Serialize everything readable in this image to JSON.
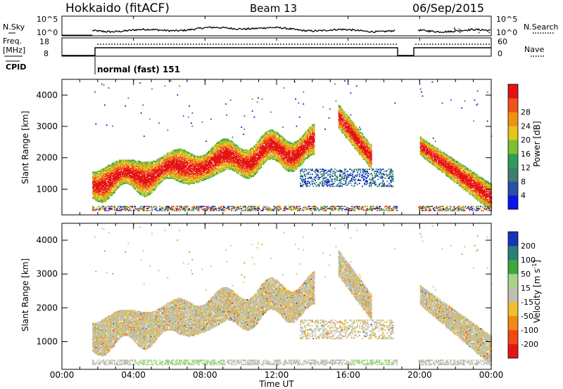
{
  "header": {
    "radar": "Hokkaido (fitACF)",
    "beam": "Beam 13",
    "date": "06/Sep/2015"
  },
  "noise_panel": {
    "left_label": "N.Sky",
    "left_ticks": [
      "10^5",
      "10^0"
    ],
    "right_ticks": [
      "10^5",
      "10^0"
    ],
    "right_label": "N.Search"
  },
  "freq_panel": {
    "left_label_1": "Freq.",
    "left_label_2": "[MHz]",
    "left_ticks": [
      "18",
      "8"
    ],
    "right_ticks": [
      "60",
      "0"
    ],
    "right_label": "Nave"
  },
  "cpid": {
    "label": "CPID",
    "program": "normal (fast) 151"
  },
  "colors": {
    "power_scale": [
      "#0b13e8",
      "#2a4fa8",
      "#3e7f6e",
      "#2f9c5a",
      "#7fc02f",
      "#e3c51c",
      "#f09119",
      "#ee5318",
      "#e41414"
    ],
    "velocity_scale": [
      "#e41414",
      "#ee4a14",
      "#f28717",
      "#eec12a",
      "#bebeb4",
      "#a8d48a",
      "#3fa83c",
      "#2d7d79",
      "#1834b6"
    ]
  },
  "chart_data": [
    {
      "type": "heatmap",
      "title": "",
      "ylabel": "Slant Range [km]",
      "xlabel": "",
      "ylim": [
        180,
        4500
      ],
      "yticks": [
        "1000",
        "2000",
        "3000",
        "4000"
      ],
      "xlim": [
        "00:00",
        "24:00"
      ],
      "colorbar": {
        "label": "Power [dB]",
        "ticks": [
          "4",
          "8",
          "12",
          "16",
          "20",
          "24",
          "28"
        ],
        "range": [
          0,
          30
        ]
      },
      "echo_regions": [
        {
          "name": "near-range band",
          "t_start": 1.7,
          "t_end": 24,
          "range_km": [
            300,
            450
          ]
        },
        {
          "name": "main arc",
          "t_start": 1.7,
          "t_end": 14.1,
          "range_km": [
            900,
            2700
          ],
          "peak_power_db": 28
        },
        {
          "name": "evening arc",
          "t_start": 15.4,
          "t_end": 17.2,
          "range_km": [
            1800,
            3800
          ],
          "peak_power_db": 28
        },
        {
          "name": "post-gap arc",
          "t_start": 20.0,
          "t_end": 24.0,
          "range_km": [
            800,
            2800
          ],
          "peak_power_db": 28
        }
      ],
      "data_gap": {
        "start": "18:42",
        "end": "19:54"
      }
    },
    {
      "type": "heatmap",
      "title": "",
      "ylabel": "Slant Range [km]",
      "xlabel": "Time UT",
      "ylim": [
        180,
        4500
      ],
      "yticks": [
        "1000",
        "2000",
        "3000",
        "4000"
      ],
      "xlim": [
        "00:00",
        "24:00"
      ],
      "xticks": [
        "00:00",
        "04:00",
        "08:00",
        "12:00",
        "16:00",
        "20:00",
        "00:00"
      ],
      "colorbar": {
        "label": "Velocity [m s^-1]",
        "label_main": "Velocity [m s",
        "label_sup": "-1",
        "label_end": "]",
        "ticks": [
          "200",
          "100",
          "50",
          "15",
          "-15",
          "-50",
          "-100",
          "-200"
        ],
        "range": [
          -250,
          250
        ]
      },
      "data_gap": {
        "start": "18:42",
        "end": "19:54"
      }
    }
  ]
}
